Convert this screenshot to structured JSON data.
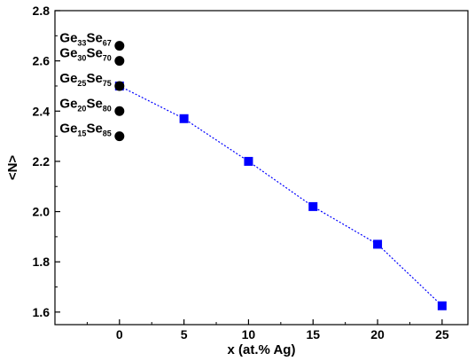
{
  "chart_data": {
    "type": "scatter",
    "xlabel": "x (at.% Ag)",
    "ylabel": "<N>",
    "xlim": [
      -5,
      27
    ],
    "ylim": [
      1.55,
      2.8
    ],
    "x_ticks": [
      "0",
      "5",
      "10",
      "15",
      "20",
      "25"
    ],
    "y_ticks": [
      "1.6",
      "1.8",
      "2.0",
      "2.2",
      "2.4",
      "2.6",
      "2.8"
    ],
    "grid": false,
    "legend": "none",
    "series": [
      {
        "marker": "square",
        "color": "#0000ff",
        "line": "dotted",
        "x": [
          0,
          5,
          10,
          15,
          20,
          25
        ],
        "y": [
          2.5,
          2.37,
          2.2,
          2.02,
          1.87,
          1.625
        ]
      },
      {
        "marker": "circle",
        "color": "#000000",
        "x": [
          0,
          0,
          0,
          0,
          0
        ],
        "y": [
          2.66,
          2.6,
          2.5,
          2.4,
          2.3
        ]
      }
    ],
    "annotations": [
      {
        "main1": "Ge",
        "sub1": "33",
        "main2": "Se",
        "sub2": "67",
        "x": 0,
        "y": 2.66
      },
      {
        "main1": "Ge",
        "sub1": "30",
        "main2": "Se",
        "sub2": "70",
        "x": 0,
        "y": 2.6
      },
      {
        "main1": "Ge",
        "sub1": "25",
        "main2": "Se",
        "sub2": "75",
        "x": 0,
        "y": 2.5
      },
      {
        "main1": "Ge",
        "sub1": "20",
        "main2": "Se",
        "sub2": "80",
        "x": 0,
        "y": 2.4
      },
      {
        "main1": "Ge",
        "sub1": "15",
        "main2": "Se",
        "sub2": "85",
        "x": 0,
        "y": 2.3
      }
    ]
  }
}
